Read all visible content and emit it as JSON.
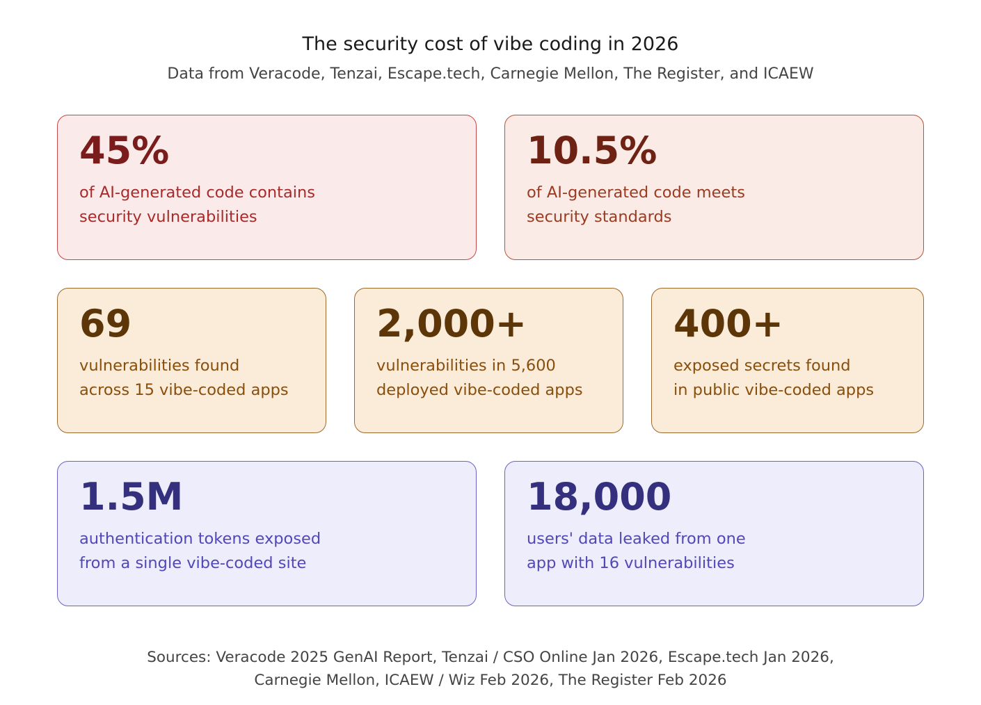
{
  "title": "The security cost of vibe coding in 2026",
  "subtitle": "Data from Veracode, Tenzai, Escape.tech, Carnegie Mellon, The Register, and ICAEW",
  "cards": [
    {
      "value": "45%",
      "line1": "of AI-generated code contains",
      "line2": "security vulnerabilities"
    },
    {
      "value": "10.5%",
      "line1": "of AI-generated code meets",
      "line2": "security standards"
    },
    {
      "value": "69",
      "line1": "vulnerabilities found",
      "line2": "across 15 vibe-coded apps"
    },
    {
      "value": "2,000+",
      "line1": "vulnerabilities in 5,600",
      "line2": "deployed vibe-coded apps"
    },
    {
      "value": "400+",
      "line1": "exposed secrets found",
      "line2": "in public vibe-coded apps"
    },
    {
      "value": "1.5M",
      "line1": "authentication tokens exposed",
      "line2": "from a single vibe-coded site"
    },
    {
      "value": "18,000",
      "line1": "users' data leaked from one",
      "line2": "app with 16 vulnerabilities"
    }
  ],
  "sources": {
    "line1": "Sources: Veracode 2025 GenAI Report, Tenzai / CSO Online Jan 2026, Escape.tech Jan 2026,",
    "line2": "Carnegie Mellon, ICAEW / Wiz Feb 2026, The Register Feb 2026"
  },
  "colors": {
    "red_bg": "#fbeaea",
    "rose_bg": "#fbebe6",
    "amber_bg": "#faecd9",
    "violet_bg": "#eeedfb"
  }
}
